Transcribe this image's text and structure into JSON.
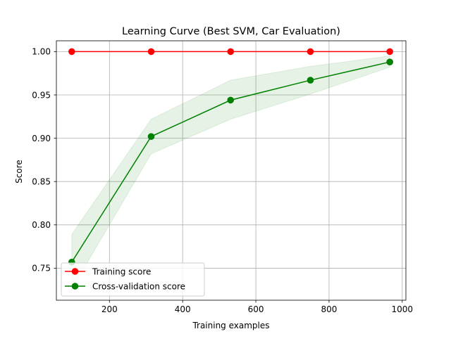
{
  "chart_data": {
    "type": "line",
    "title": "Learning Curve (Best SVM, Car Evaluation)",
    "xlabel": "Training examples",
    "ylabel": "Score",
    "xlim": [
      55,
      1010
    ],
    "ylim": [
      0.713,
      1.0125
    ],
    "xticks": [
      200,
      400,
      600,
      800,
      1000
    ],
    "yticks": [
      0.75,
      0.8,
      0.85,
      0.9,
      0.95,
      1.0
    ],
    "grid": true,
    "legend_position": "lower left",
    "x": [
      97,
      314,
      531,
      749,
      966
    ],
    "series": [
      {
        "name": "Training score",
        "color": "#ff0000",
        "values": [
          1.0,
          1.0,
          1.0,
          1.0,
          1.0
        ],
        "band_lower": [
          1.0,
          1.0,
          1.0,
          1.0,
          1.0
        ],
        "band_upper": [
          1.0,
          1.0,
          1.0,
          1.0,
          1.0
        ]
      },
      {
        "name": "Cross-validation score",
        "color": "#008000",
        "values": [
          0.757,
          0.902,
          0.944,
          0.967,
          0.988
        ],
        "band_lower": [
          0.726,
          0.882,
          0.922,
          0.951,
          0.982
        ],
        "band_upper": [
          0.789,
          0.922,
          0.967,
          0.983,
          0.995
        ]
      }
    ]
  }
}
